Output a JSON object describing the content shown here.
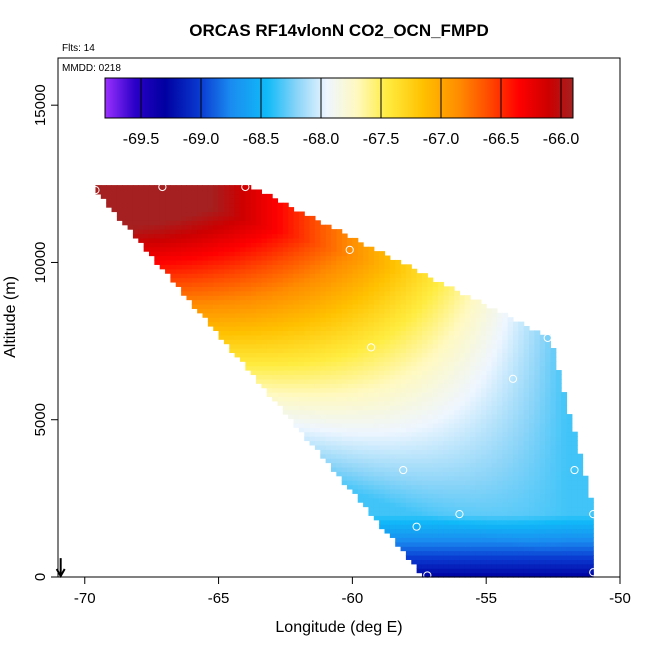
{
  "chart_data": {
    "type": "heatmap",
    "title": "ORCAS RF14vlonN CO2_OCN_FMPD",
    "flights_note": "Flts: 14",
    "date_note": "MMDD: 0218",
    "xlabel": "Longitude (deg E)",
    "ylabel": "Altitude (m)",
    "xlim": [
      -71,
      -50
    ],
    "ylim": [
      0,
      16500
    ],
    "x_ticks": [
      -70,
      -65,
      -60,
      -55,
      -50
    ],
    "y_ticks": [
      0,
      5000,
      10000,
      15000
    ],
    "x_tick_labels": [
      "-70",
      "-65",
      "-60",
      "-55",
      "-50"
    ],
    "y_tick_labels": [
      "0",
      "5000",
      "10000",
      "15000"
    ],
    "colorbar": {
      "range": [
        -69.8,
        -65.9
      ],
      "ticks": [
        -69.5,
        -69.0,
        -68.5,
        -68.0,
        -67.5,
        -67.0,
        -66.5,
        -66.0
      ],
      "tick_labels": [
        "-69.5",
        "-69.0",
        "-68.5",
        "-68.0",
        "-67.5",
        "-67.0",
        "-66.5",
        "-66.0"
      ],
      "stops": [
        {
          "value": -69.8,
          "color": "#9b30ff"
        },
        {
          "value": -69.55,
          "color": "#2a00c8"
        },
        {
          "value": -69.3,
          "color": "#0000a0"
        },
        {
          "value": -69.0,
          "color": "#0a3cd2"
        },
        {
          "value": -68.75,
          "color": "#1a8cf0"
        },
        {
          "value": -68.45,
          "color": "#10baf8"
        },
        {
          "value": -68.2,
          "color": "#8ad4f8"
        },
        {
          "value": -67.95,
          "color": "#eef6ff"
        },
        {
          "value": -67.7,
          "color": "#fff9c0"
        },
        {
          "value": -67.45,
          "color": "#ffec40"
        },
        {
          "value": -67.15,
          "color": "#ffc100"
        },
        {
          "value": -66.85,
          "color": "#ff8c00"
        },
        {
          "value": -66.6,
          "color": "#ff4a00"
        },
        {
          "value": -66.35,
          "color": "#ff0000"
        },
        {
          "value": -66.1,
          "color": "#cc0000"
        },
        {
          "value": -65.9,
          "color": "#a52020"
        }
      ]
    },
    "field": {
      "lon_range": [
        -69.8,
        -51.0
      ],
      "alt_range": [
        0,
        12500
      ],
      "bottom_left_lon": -57.3,
      "top_right_lon": -52.6,
      "top_right_alt": 7600,
      "right_lower_lon": -51.0,
      "right_lower_alt": 2200
    },
    "sample_points": [
      {
        "lon": -69.6,
        "alt": 12300
      },
      {
        "lon": -67.1,
        "alt": 12400
      },
      {
        "lon": -64.0,
        "alt": 12400
      },
      {
        "lon": -60.1,
        "alt": 10400
      },
      {
        "lon": -59.3,
        "alt": 7300
      },
      {
        "lon": -52.7,
        "alt": 7600
      },
      {
        "lon": -54.0,
        "alt": 6300
      },
      {
        "lon": -58.1,
        "alt": 3400
      },
      {
        "lon": -51.7,
        "alt": 3400
      },
      {
        "lon": -56.0,
        "alt": 2000
      },
      {
        "lon": -57.6,
        "alt": 1600
      },
      {
        "lon": -51.0,
        "alt": 2000
      },
      {
        "lon": -57.2,
        "alt": 50
      },
      {
        "lon": -51.0,
        "alt": 150
      }
    ],
    "arrow_marker": {
      "lon": -70.9,
      "alt": 600
    }
  }
}
